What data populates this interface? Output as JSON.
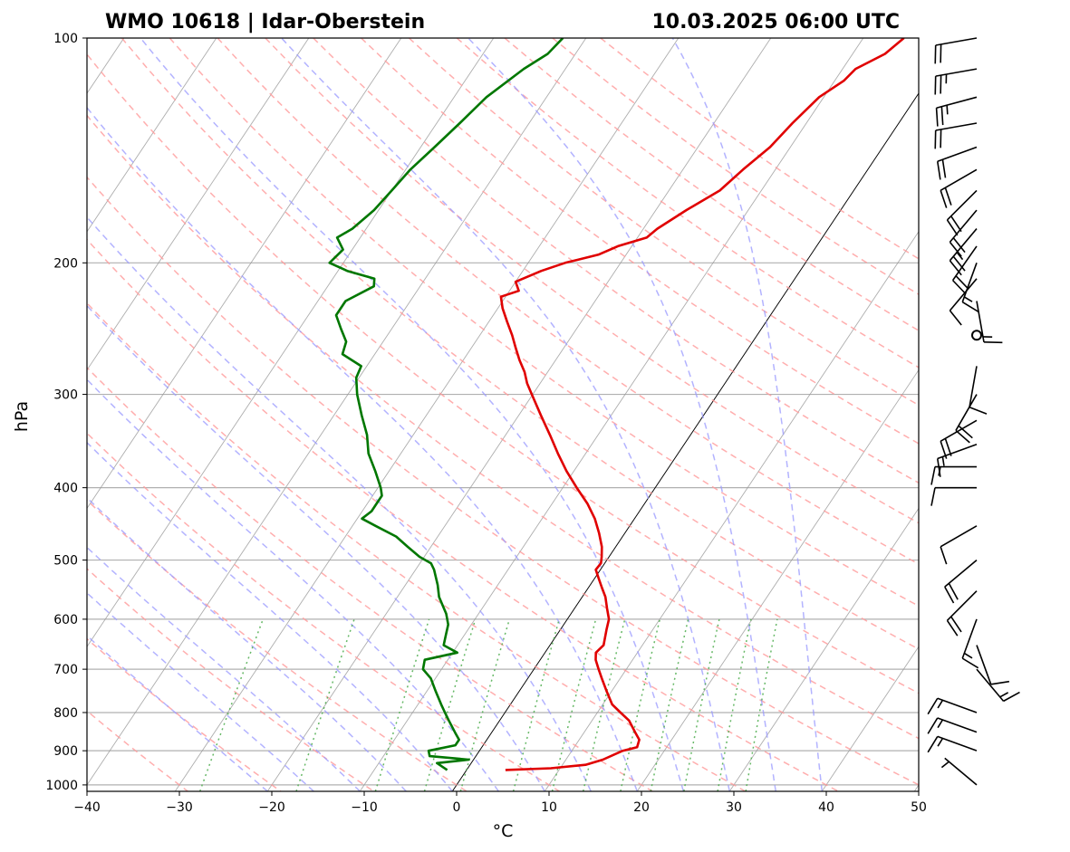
{
  "chart_data": {
    "type": "line",
    "station": "WMO 10618 | Idar-Oberstein",
    "valid_time": "10.03.2025 06:00 UTC",
    "xlabel": "°C",
    "ylabel": "hPa",
    "xlim": [
      -40,
      50
    ],
    "ylim": [
      1020,
      100
    ],
    "skew_per_log10_pressure": 54,
    "x_ticks": [
      "−40",
      "−30",
      "−20",
      "−10",
      "0",
      "10",
      "20",
      "30",
      "40",
      "50"
    ],
    "y_ticks": [
      "100",
      "200",
      "300",
      "400",
      "500",
      "600",
      "700",
      "800",
      "900",
      "1000"
    ],
    "x_tick_values": [
      -40,
      -30,
      -20,
      -10,
      0,
      10,
      20,
      30,
      40,
      50
    ],
    "y_tick_values": [
      100,
      200,
      300,
      400,
      500,
      600,
      700,
      800,
      900,
      1000
    ],
    "colors": {
      "temperature": "#e00000",
      "dewpoint": "#007700",
      "isotherm": "#999999",
      "dry_adiabat": "#ff9a9a",
      "moist_adiabat": "#9a9aff",
      "mixing_ratio": "#55b055",
      "grid": "#b0b0b0"
    },
    "series": [
      {
        "name": "Temperature",
        "points": [
          [
            955,
            4.2
          ],
          [
            950,
            9
          ],
          [
            940,
            12.5
          ],
          [
            925,
            14
          ],
          [
            900,
            15.5
          ],
          [
            890,
            16.8
          ],
          [
            870,
            16.5
          ],
          [
            850,
            15.5
          ],
          [
            820,
            14
          ],
          [
            800,
            12.5
          ],
          [
            780,
            11
          ],
          [
            750,
            9.5
          ],
          [
            720,
            8
          ],
          [
            700,
            7
          ],
          [
            680,
            6
          ],
          [
            665,
            5.5
          ],
          [
            650,
            5.8
          ],
          [
            620,
            5
          ],
          [
            600,
            4.5
          ],
          [
            580,
            3.5
          ],
          [
            560,
            2.5
          ],
          [
            545,
            1.5
          ],
          [
            530,
            0.5
          ],
          [
            515,
            -0.5
          ],
          [
            505,
            -0.4
          ],
          [
            495,
            -0.8
          ],
          [
            480,
            -1.5
          ],
          [
            460,
            -2.8
          ],
          [
            440,
            -4.3
          ],
          [
            420,
            -6.2
          ],
          [
            400,
            -8.5
          ],
          [
            380,
            -10.8
          ],
          [
            360,
            -13
          ],
          [
            340,
            -15.2
          ],
          [
            320,
            -17.6
          ],
          [
            300,
            -20.1
          ],
          [
            290,
            -21.4
          ],
          [
            280,
            -22.5
          ],
          [
            270,
            -23.9
          ],
          [
            260,
            -25.2
          ],
          [
            250,
            -26.5
          ],
          [
            240,
            -28
          ],
          [
            230,
            -29.5
          ],
          [
            222,
            -30.5
          ],
          [
            218,
            -29
          ],
          [
            212,
            -30
          ],
          [
            205,
            -28
          ],
          [
            200,
            -26
          ],
          [
            195,
            -23
          ],
          [
            190,
            -21.5
          ],
          [
            185,
            -19
          ],
          [
            180,
            -18.5
          ],
          [
            170,
            -16.7
          ],
          [
            160,
            -14.5
          ],
          [
            150,
            -13.5
          ],
          [
            140,
            -12.2
          ],
          [
            130,
            -11.5
          ],
          [
            120,
            -10.5
          ],
          [
            114,
            -9
          ],
          [
            110,
            -8.6
          ],
          [
            105,
            -6.5
          ],
          [
            100,
            -5.6
          ]
        ]
      },
      {
        "name": "Dewpoint",
        "points": [
          [
            955,
            -2.1
          ],
          [
            935,
            -3.7
          ],
          [
            925,
            -0.5
          ],
          [
            915,
            -5
          ],
          [
            900,
            -5.5
          ],
          [
            885,
            -3
          ],
          [
            870,
            -3
          ],
          [
            850,
            -4
          ],
          [
            820,
            -5.5
          ],
          [
            800,
            -6.5
          ],
          [
            780,
            -7.5
          ],
          [
            750,
            -9
          ],
          [
            720,
            -10.5
          ],
          [
            700,
            -12
          ],
          [
            680,
            -12.5
          ],
          [
            665,
            -9.5
          ],
          [
            650,
            -11.5
          ],
          [
            630,
            -12
          ],
          [
            610,
            -12.5
          ],
          [
            590,
            -13.5
          ],
          [
            560,
            -15.5
          ],
          [
            540,
            -16.5
          ],
          [
            515,
            -18
          ],
          [
            505,
            -18.8
          ],
          [
            495,
            -20.5
          ],
          [
            480,
            -22.5
          ],
          [
            465,
            -24.5
          ],
          [
            450,
            -27.5
          ],
          [
            440,
            -29.5
          ],
          [
            430,
            -29
          ],
          [
            420,
            -29
          ],
          [
            410,
            -29
          ],
          [
            400,
            -29.7
          ],
          [
            380,
            -31.5
          ],
          [
            360,
            -33.5
          ],
          [
            340,
            -35
          ],
          [
            320,
            -37
          ],
          [
            300,
            -39
          ],
          [
            285,
            -40.3
          ],
          [
            275,
            -40.6
          ],
          [
            265,
            -43.5
          ],
          [
            255,
            -44
          ],
          [
            245,
            -45.5
          ],
          [
            235,
            -47
          ],
          [
            225,
            -47
          ],
          [
            215,
            -45
          ],
          [
            210,
            -45.5
          ],
          [
            205,
            -49
          ],
          [
            200,
            -51.5
          ],
          [
            192,
            -51
          ],
          [
            185,
            -52.5
          ],
          [
            180,
            -51.5
          ],
          [
            170,
            -50.5
          ],
          [
            160,
            -50
          ],
          [
            150,
            -49.5
          ],
          [
            140,
            -48.5
          ],
          [
            130,
            -47.5
          ],
          [
            120,
            -46.5
          ],
          [
            110,
            -44.5
          ],
          [
            105,
            -43
          ],
          [
            100,
            -42.5
          ]
        ]
      }
    ],
    "dry_adiabats_thetaC": [
      -30,
      -20,
      -10,
      0,
      10,
      20,
      30,
      40,
      50,
      60,
      70,
      80,
      90,
      100,
      110,
      120,
      130,
      140,
      150,
      160,
      170,
      180
    ],
    "moist_adiabats_startC": [
      -20,
      -15,
      -10,
      -5,
      0,
      5,
      10,
      15,
      20,
      25,
      30,
      35,
      40
    ],
    "mixing_ratio_lines_gkg": [
      0.4,
      1,
      2,
      3,
      4,
      6,
      8,
      10,
      13,
      16,
      20,
      25,
      30
    ],
    "wind_barbs": [
      {
        "p": 100,
        "dir": 260,
        "spd": 20
      },
      {
        "p": 110,
        "dir": 260,
        "spd": 25
      },
      {
        "p": 120,
        "dir": 255,
        "spd": 25
      },
      {
        "p": 130,
        "dir": 260,
        "spd": 20
      },
      {
        "p": 140,
        "dir": 250,
        "spd": 20
      },
      {
        "p": 150,
        "dir": 240,
        "spd": 20
      },
      {
        "p": 160,
        "dir": 225,
        "spd": 20
      },
      {
        "p": 170,
        "dir": 220,
        "spd": 20
      },
      {
        "p": 180,
        "dir": 220,
        "spd": 25
      },
      {
        "p": 190,
        "dir": 215,
        "spd": 20
      },
      {
        "p": 200,
        "dir": 200,
        "spd": 15
      },
      {
        "p": 210,
        "dir": 220,
        "spd": 10
      },
      {
        "p": 225,
        "dir": 170,
        "spd": 15
      },
      {
        "p": 250,
        "dir": 0,
        "spd": 0
      },
      {
        "p": 275,
        "dir": 190,
        "spd": 10
      },
      {
        "p": 300,
        "dir": 210,
        "spd": 20
      },
      {
        "p": 325,
        "dir": 240,
        "spd": 20
      },
      {
        "p": 350,
        "dir": 250,
        "spd": 15
      },
      {
        "p": 375,
        "dir": 270,
        "spd": 15
      },
      {
        "p": 400,
        "dir": 270,
        "spd": 10
      },
      {
        "p": 450,
        "dir": 240,
        "spd": 10
      },
      {
        "p": 500,
        "dir": 230,
        "spd": 20
      },
      {
        "p": 550,
        "dir": 225,
        "spd": 20
      },
      {
        "p": 600,
        "dir": 200,
        "spd": 15
      },
      {
        "p": 650,
        "dir": 160,
        "spd": 10
      },
      {
        "p": 700,
        "dir": 140,
        "spd": 15
      },
      {
        "p": 800,
        "dir": 290,
        "spd": 15
      },
      {
        "p": 850,
        "dir": 290,
        "spd": 15
      },
      {
        "p": 900,
        "dir": 290,
        "spd": 15
      },
      {
        "p": 1000,
        "dir": 310,
        "spd": 5
      }
    ]
  }
}
